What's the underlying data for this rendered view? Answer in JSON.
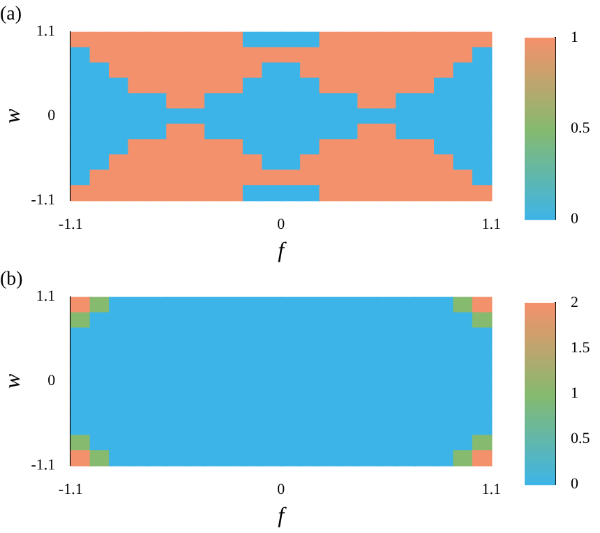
{
  "chart_data": [
    {
      "type": "heatmap",
      "title": "(a)",
      "xlabel": "f",
      "ylabel": "w",
      "x": [
        -1.05,
        -0.95,
        -0.85,
        -0.75,
        -0.65,
        -0.55,
        -0.45,
        -0.35,
        -0.25,
        -0.15,
        -0.05,
        0.05,
        0.15,
        0.25,
        0.35,
        0.45,
        0.55,
        0.65,
        0.75,
        0.85,
        0.95,
        1.05
      ],
      "y": [
        1,
        0.8,
        0.6,
        0.4,
        0.2,
        0,
        -0.2,
        -0.4,
        -0.6,
        -0.8,
        -1
      ],
      "xlim": [
        -1.1,
        1.1
      ],
      "xticks": [
        -1.1,
        0,
        1.1
      ],
      "ylim": [
        -1.1,
        1.1
      ],
      "yticks": [
        -1.1,
        0,
        1.1
      ],
      "clim": [
        0,
        1
      ],
      "cticks": [
        0,
        0.5,
        1
      ],
      "cells": [
        [
          1,
          1,
          1,
          1,
          1,
          1,
          1,
          1,
          1,
          0,
          0,
          0,
          0,
          1,
          1,
          1,
          1,
          1,
          1,
          1,
          1,
          1
        ],
        [
          0,
          1,
          1,
          1,
          1,
          1,
          1,
          1,
          1,
          1,
          1,
          1,
          1,
          1,
          1,
          1,
          1,
          1,
          1,
          1,
          1,
          0
        ],
        [
          0,
          0,
          1,
          1,
          1,
          1,
          1,
          1,
          1,
          1,
          0,
          0,
          1,
          1,
          1,
          1,
          1,
          1,
          1,
          1,
          0,
          0
        ],
        [
          0,
          0,
          0,
          1,
          1,
          1,
          1,
          1,
          1,
          0,
          0,
          0,
          0,
          1,
          1,
          1,
          1,
          1,
          1,
          0,
          0,
          0
        ],
        [
          0,
          0,
          0,
          0,
          0,
          1,
          1,
          0,
          0,
          0,
          0,
          0,
          0,
          0,
          0,
          1,
          1,
          0,
          0,
          0,
          0,
          0
        ],
        [
          0,
          0,
          0,
          0,
          0,
          0,
          0,
          0,
          0,
          0,
          0,
          0,
          0,
          0,
          0,
          0,
          0,
          0,
          0,
          0,
          0,
          0
        ],
        [
          0,
          0,
          0,
          0,
          0,
          1,
          1,
          0,
          0,
          0,
          0,
          0,
          0,
          0,
          0,
          1,
          1,
          0,
          0,
          0,
          0,
          0
        ],
        [
          0,
          0,
          0,
          1,
          1,
          1,
          1,
          1,
          1,
          0,
          0,
          0,
          0,
          1,
          1,
          1,
          1,
          1,
          1,
          0,
          0,
          0
        ],
        [
          0,
          0,
          1,
          1,
          1,
          1,
          1,
          1,
          1,
          1,
          0,
          0,
          1,
          1,
          1,
          1,
          1,
          1,
          1,
          1,
          0,
          0
        ],
        [
          0,
          1,
          1,
          1,
          1,
          1,
          1,
          1,
          1,
          1,
          1,
          1,
          1,
          1,
          1,
          1,
          1,
          1,
          1,
          1,
          1,
          0
        ],
        [
          1,
          1,
          1,
          1,
          1,
          1,
          1,
          1,
          1,
          0,
          0,
          0,
          0,
          1,
          1,
          1,
          1,
          1,
          1,
          1,
          1,
          1
        ]
      ]
    },
    {
      "type": "heatmap",
      "title": "(b)",
      "xlabel": "f",
      "ylabel": "w",
      "x": [
        -1.05,
        -0.95,
        -0.85,
        -0.75,
        -0.65,
        -0.55,
        -0.45,
        -0.35,
        -0.25,
        -0.15,
        -0.05,
        0.05,
        0.15,
        0.25,
        0.35,
        0.45,
        0.55,
        0.65,
        0.75,
        0.85,
        0.95,
        1.05
      ],
      "y": [
        1,
        0.8,
        0.6,
        0.4,
        0.2,
        0,
        -0.2,
        -0.4,
        -0.6,
        -0.8,
        -1
      ],
      "xlim": [
        -1.1,
        1.1
      ],
      "xticks": [
        -1.1,
        0,
        1.1
      ],
      "ylim": [
        -1.1,
        1.1
      ],
      "yticks": [
        -1.1,
        0,
        1.1
      ],
      "clim": [
        0,
        2
      ],
      "cticks": [
        0,
        0.5,
        1,
        1.5,
        2
      ],
      "cells": [
        [
          2,
          1,
          0,
          0,
          0,
          0,
          0,
          0,
          0,
          0,
          0,
          0,
          0,
          0,
          0,
          0,
          0,
          0,
          0,
          0,
          1,
          2
        ],
        [
          1,
          0,
          0,
          0,
          0,
          0,
          0,
          0,
          0,
          0,
          0,
          0,
          0,
          0,
          0,
          0,
          0,
          0,
          0,
          0,
          0,
          1
        ],
        [
          0,
          0,
          0,
          0,
          0,
          0,
          0,
          0,
          0,
          0,
          0,
          0,
          0,
          0,
          0,
          0,
          0,
          0,
          0,
          0,
          0,
          0
        ],
        [
          0,
          0,
          0,
          0,
          0,
          0,
          0,
          0,
          0,
          0,
          0,
          0,
          0,
          0,
          0,
          0,
          0,
          0,
          0,
          0,
          0,
          0
        ],
        [
          0,
          0,
          0,
          0,
          0,
          0,
          0,
          0,
          0,
          0,
          0,
          0,
          0,
          0,
          0,
          0,
          0,
          0,
          0,
          0,
          0,
          0
        ],
        [
          0,
          0,
          0,
          0,
          0,
          0,
          0,
          0,
          0,
          0,
          0,
          0,
          0,
          0,
          0,
          0,
          0,
          0,
          0,
          0,
          0,
          0
        ],
        [
          0,
          0,
          0,
          0,
          0,
          0,
          0,
          0,
          0,
          0,
          0,
          0,
          0,
          0,
          0,
          0,
          0,
          0,
          0,
          0,
          0,
          0
        ],
        [
          0,
          0,
          0,
          0,
          0,
          0,
          0,
          0,
          0,
          0,
          0,
          0,
          0,
          0,
          0,
          0,
          0,
          0,
          0,
          0,
          0,
          0
        ],
        [
          0,
          0,
          0,
          0,
          0,
          0,
          0,
          0,
          0,
          0,
          0,
          0,
          0,
          0,
          0,
          0,
          0,
          0,
          0,
          0,
          0,
          0
        ],
        [
          1,
          0,
          0,
          0,
          0,
          0,
          0,
          0,
          0,
          0,
          0,
          0,
          0,
          0,
          0,
          0,
          0,
          0,
          0,
          0,
          0,
          1
        ],
        [
          2,
          1,
          0,
          0,
          0,
          0,
          0,
          0,
          0,
          0,
          0,
          0,
          0,
          0,
          0,
          0,
          0,
          0,
          0,
          0,
          1,
          2
        ]
      ]
    }
  ]
}
